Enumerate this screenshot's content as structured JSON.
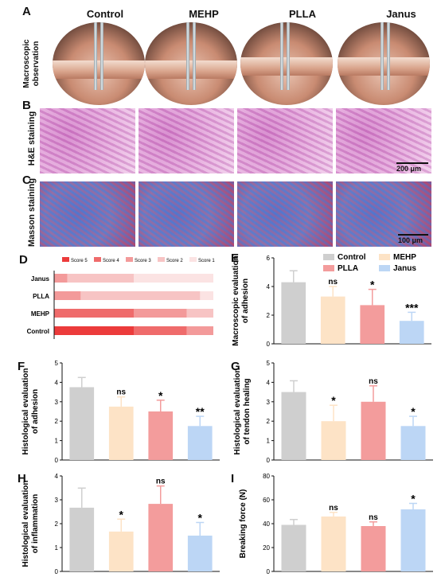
{
  "panels": {
    "A": "A",
    "B": "B",
    "C": "C",
    "D": "D",
    "E": "E",
    "F": "F",
    "G": "G",
    "H": "H",
    "I": "I"
  },
  "groups": [
    "Control",
    "MEHP",
    "PLLA",
    "Janus"
  ],
  "row_labels": {
    "macro": "Macroscopic observation",
    "he": "H&E staining",
    "masson": "Masson staining"
  },
  "scale_bars": {
    "he": "200 μm",
    "masson": "100 μm"
  },
  "colors": {
    "Control": "#cfcfcf",
    "MEHP": "#fde3c6",
    "PLLA": "#f39c9c",
    "Janus": "#bcd6f5",
    "score5": "#ec3b3b",
    "score4": "#ef6b6b",
    "score3": "#f39a9a",
    "score2": "#f7c4c4",
    "score1": "#fbe3e3"
  },
  "chart_data": [
    {
      "id": "D",
      "type": "bar",
      "orientation": "horizontal-stacked",
      "categories": [
        "Janus",
        "PLLA",
        "MEHP",
        "Control"
      ],
      "series": [
        {
          "name": "Score 5",
          "values": [
            0,
            0,
            0,
            0.5
          ]
        },
        {
          "name": "Score 4",
          "values": [
            0,
            0,
            0.5,
            0.333
          ]
        },
        {
          "name": "Score 3",
          "values": [
            0.083,
            0.167,
            0.333,
            0.167
          ]
        },
        {
          "name": "Score 2",
          "values": [
            0.417,
            0.75,
            0.167,
            0
          ]
        },
        {
          "name": "Score 1",
          "values": [
            0.5,
            0.083,
            0,
            0
          ]
        }
      ],
      "xticks": [
        "0",
        "25%",
        "50%",
        "75%",
        "100%"
      ],
      "xlim": [
        0,
        1
      ]
    },
    {
      "id": "E",
      "type": "bar",
      "categories": [
        "Control",
        "MEHP",
        "PLLA",
        "Janus"
      ],
      "values": [
        4.3,
        3.3,
        2.7,
        1.6
      ],
      "errors": [
        0.8,
        0.7,
        1.1,
        0.6
      ],
      "significance": [
        "",
        "ns",
        "*",
        "***"
      ],
      "ylabel": "Macroscopic evaluation of adhesion",
      "ylim": [
        0,
        6
      ],
      "yticks": [
        0,
        2,
        4,
        6
      ],
      "legend": [
        "Control",
        "MEHP",
        "PLLA",
        "Janus"
      ]
    },
    {
      "id": "F",
      "type": "bar",
      "categories": [
        "Control",
        "MEHP",
        "PLLA",
        "Janus"
      ],
      "values": [
        3.75,
        2.75,
        2.5,
        1.75
      ],
      "errors": [
        0.5,
        0.5,
        0.58,
        0.5
      ],
      "significance": [
        "",
        "ns",
        "*",
        "**"
      ],
      "ylabel": "Histological evaluation of adhesion",
      "ylim": [
        0,
        5
      ],
      "yticks": [
        0,
        1,
        2,
        3,
        4,
        5
      ]
    },
    {
      "id": "G",
      "type": "bar",
      "categories": [
        "Control",
        "MEHP",
        "PLLA",
        "Janus"
      ],
      "values": [
        3.5,
        2.0,
        3.0,
        1.75
      ],
      "errors": [
        0.58,
        0.82,
        0.82,
        0.5
      ],
      "significance": [
        "",
        "*",
        "ns",
        "*"
      ],
      "ylabel": "Histological evaluation of tendon healing",
      "ylim": [
        0,
        5
      ],
      "yticks": [
        0,
        1,
        2,
        3,
        4,
        5
      ]
    },
    {
      "id": "H",
      "type": "bar",
      "categories": [
        "Control",
        "MEHP",
        "PLLA",
        "Janus"
      ],
      "values": [
        2.67,
        1.67,
        2.83,
        1.5
      ],
      "errors": [
        0.82,
        0.52,
        0.75,
        0.55
      ],
      "significance": [
        "",
        "*",
        "ns",
        "*"
      ],
      "ylabel": "Histological evaluation of inflammation",
      "ylim": [
        0,
        4
      ],
      "yticks": [
        0,
        1,
        2,
        3,
        4
      ]
    },
    {
      "id": "I",
      "type": "bar",
      "categories": [
        "Control",
        "MEHP",
        "PLLA",
        "Janus"
      ],
      "values": [
        39,
        46,
        38,
        52
      ],
      "errors": [
        4.5,
        3.5,
        3.5,
        5
      ],
      "significance": [
        "",
        "ns",
        "ns",
        "*"
      ],
      "ylabel": "Breaking force (N)",
      "ylim": [
        0,
        80
      ],
      "yticks": [
        0,
        20,
        40,
        60,
        80
      ]
    }
  ]
}
